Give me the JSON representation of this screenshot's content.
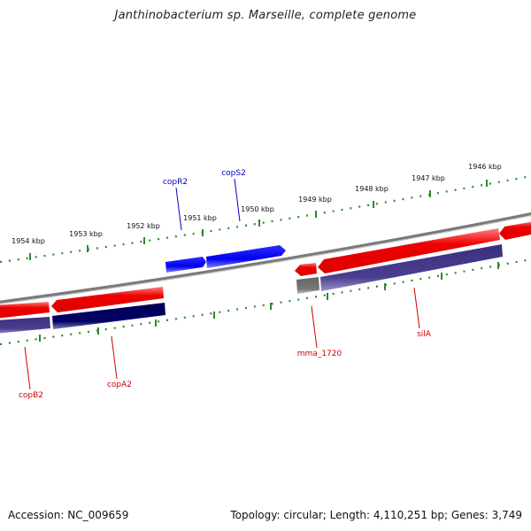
{
  "title": "Janthinobacterium sp. Marseille, complete genome",
  "footer": {
    "accession": "Accession: NC_009659",
    "summary": "Topology: circular; Length: 4,110,251 bp; Genes: 3,749"
  },
  "colors": {
    "forward_gene": "#ee0000",
    "forward_gene_light": "#ff7070",
    "reverse_gene": "#0000dd",
    "reverse_gene_light": "#7070ff",
    "cds_forward": "#4a3f8f",
    "cds_dark": "#000066",
    "rna_gray": "#777777",
    "backbone": "#7a7a7a",
    "ruler": "#2a8a2a",
    "label_red": "#cc0000",
    "label_blue": "#0000cc"
  },
  "scale": {
    "ticks_kbp": [
      1946,
      1947,
      1948,
      1949,
      1950,
      1951,
      1952,
      1953,
      1954
    ],
    "tick_labels": [
      "1946 kbp",
      "1947 kbp",
      "1948 kbp",
      "1949 kbp",
      "1950 kbp",
      "1951 kbp",
      "1952 kbp",
      "1953 kbp",
      "1954 kbp"
    ]
  },
  "gene_labels": [
    {
      "id": "copR2",
      "text": "copR2",
      "strand": "reverse"
    },
    {
      "id": "copS2",
      "text": "copS2",
      "strand": "reverse"
    },
    {
      "id": "mma_1720",
      "text": "mma_1720",
      "strand": "forward"
    },
    {
      "id": "silA",
      "text": "silA",
      "strand": "forward"
    },
    {
      "id": "copA2",
      "text": "copA2",
      "strand": "forward"
    },
    {
      "id": "copB2",
      "text": "copB2",
      "strand": "forward"
    }
  ]
}
